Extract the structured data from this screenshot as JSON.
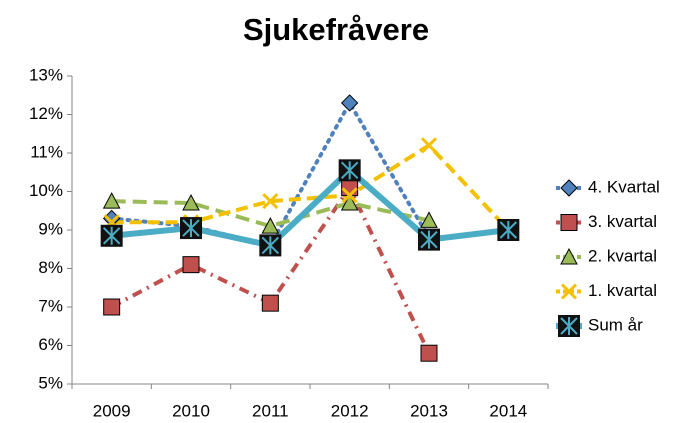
{
  "chart_data": {
    "type": "line",
    "title": "Sjukefråvere",
    "categories": [
      "2009",
      "2010",
      "2011",
      "2012",
      "2013",
      "2014"
    ],
    "series": [
      {
        "name": "4. Kvartal",
        "color": "#4F81BD",
        "dash": "dotted",
        "marker": "diamond",
        "values": [
          9.3,
          9.1,
          8.6,
          12.3,
          8.8,
          null
        ]
      },
      {
        "name": "3. kvartal",
        "color": "#C0504D",
        "dash": "dashdot",
        "marker": "square",
        "values": [
          7.0,
          8.1,
          7.1,
          10.1,
          5.8,
          null
        ]
      },
      {
        "name": "2. kvartal",
        "color": "#9BBB59",
        "dash": "longdash",
        "marker": "triangle",
        "values": [
          9.75,
          9.7,
          9.1,
          9.7,
          9.25,
          null
        ]
      },
      {
        "name": "1. kvartal",
        "color": "#F5C000",
        "dash": "dash",
        "marker": "x",
        "values": [
          9.2,
          9.2,
          9.75,
          9.9,
          11.2,
          9.0
        ]
      },
      {
        "name": "Sum år",
        "color": "#4BACC6",
        "dash": "solid",
        "marker": "star",
        "values": [
          8.85,
          9.05,
          8.6,
          10.55,
          8.75,
          9.0
        ]
      }
    ],
    "ylim": [
      5,
      13
    ],
    "yticks": [
      {
        "value": 5,
        "label": "5%"
      },
      {
        "value": 6,
        "label": "6%"
      },
      {
        "value": 7,
        "label": "7%"
      },
      {
        "value": 8,
        "label": "8%"
      },
      {
        "value": 9,
        "label": "9%"
      },
      {
        "value": 10,
        "label": "10%"
      },
      {
        "value": 11,
        "label": "11%"
      },
      {
        "value": 12,
        "label": "12%"
      },
      {
        "value": 13,
        "label": "13%"
      }
    ],
    "grid": false,
    "legend": "right"
  }
}
